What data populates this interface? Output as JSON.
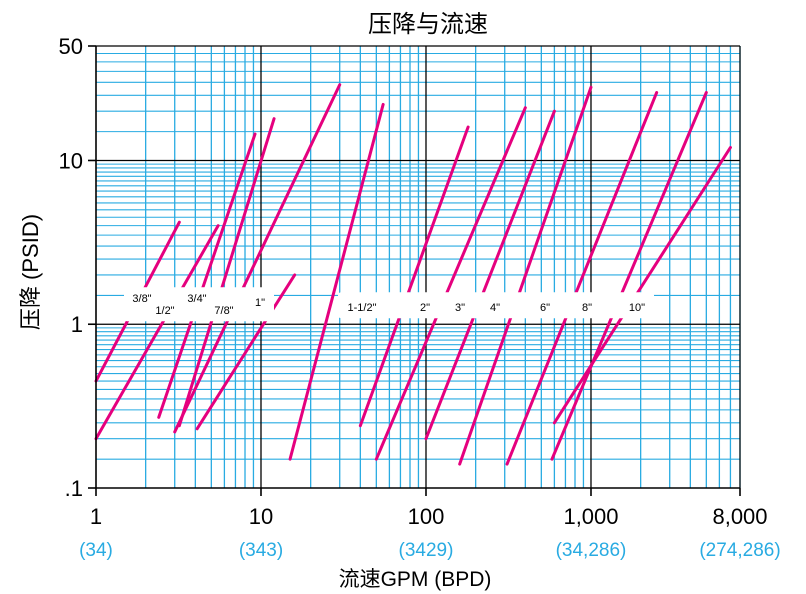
{
  "chart_data": {
    "type": "line",
    "title": "压降与流速",
    "xlabel": "流速GPM (BPD)",
    "ylabel": "压降 (PSID)",
    "x_scale": "log",
    "y_scale": "log",
    "xlim": [
      1,
      8000
    ],
    "ylim": [
      0.1,
      50
    ],
    "grid": true,
    "x_ticks": [
      {
        "value": 1,
        "label": "1",
        "sublabel": "(34)"
      },
      {
        "value": 10,
        "label": "10",
        "sublabel": "(343)"
      },
      {
        "value": 100,
        "label": "100",
        "sublabel": "(3429)"
      },
      {
        "value": 1000,
        "label": "1,000",
        "sublabel": "(34,286)"
      },
      {
        "value": 8000,
        "label": "8,000",
        "sublabel": "(274,286)"
      }
    ],
    "y_ticks": [
      {
        "value": 0.1,
        "label": ".1"
      },
      {
        "value": 1,
        "label": "1"
      },
      {
        "value": 10,
        "label": "10"
      },
      {
        "value": 50,
        "label": "50"
      }
    ],
    "series": [
      {
        "name": "3/8\"",
        "x": [
          1.0,
          3.2
        ],
        "y": [
          0.45,
          4.2
        ]
      },
      {
        "name": "1/2\"",
        "x": [
          1.0,
          5.5
        ],
        "y": [
          0.2,
          4.0
        ]
      },
      {
        "name": "3/4\"",
        "x": [
          2.4,
          9.2
        ],
        "y": [
          0.27,
          14.5
        ]
      },
      {
        "name": "7/8\"",
        "x": [
          3.2,
          12.0
        ],
        "y": [
          0.24,
          18.0
        ]
      },
      {
        "name": "1\"",
        "x": [
          4.1,
          16.0
        ],
        "y": [
          0.23,
          2.0
        ]
      },
      {
        "name": "",
        "x": [
          3.0,
          30.0
        ],
        "y": [
          0.22,
          29.0
        ]
      },
      {
        "name": "",
        "x": [
          15.0,
          55.0
        ],
        "y": [
          0.15,
          22.0
        ]
      },
      {
        "name": "1-1/2\"",
        "x": [
          40.0,
          180.0
        ],
        "y": [
          0.24,
          16.0
        ]
      },
      {
        "name": "2\"",
        "x": [
          50.0,
          400.0
        ],
        "y": [
          0.15,
          21.0
        ]
      },
      {
        "name": "3\"",
        "x": [
          100.0,
          600.0
        ],
        "y": [
          0.2,
          20.0
        ]
      },
      {
        "name": "4\"",
        "x": [
          160.0,
          1000.0
        ],
        "y": [
          0.14,
          28.0
        ]
      },
      {
        "name": "6\"",
        "x": [
          310.0,
          2500.0
        ],
        "y": [
          0.14,
          26.0
        ]
      },
      {
        "name": "8\"",
        "x": [
          580.0,
          5000.0
        ],
        "y": [
          0.15,
          26.0
        ]
      },
      {
        "name": "10\"",
        "x": [
          600.0,
          7000.0
        ],
        "y": [
          0.25,
          12.0
        ]
      }
    ],
    "colors": {
      "grid_minor": "#29abe2",
      "grid_major": "#000000",
      "series": "#e5007e",
      "sublabel": "#29abe2",
      "text": "#000000"
    }
  }
}
